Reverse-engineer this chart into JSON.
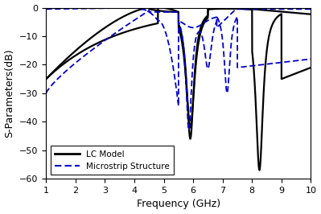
{
  "xlabel": "Frequency (GHz)",
  "ylabel": "S-Parameters(dB)",
  "xlim": [
    1,
    10
  ],
  "ylim": [
    -60,
    0
  ],
  "yticks": [
    0,
    -10,
    -20,
    -30,
    -40,
    -50,
    -60
  ],
  "xticks": [
    1,
    2,
    3,
    4,
    5,
    6,
    7,
    8,
    9,
    10
  ],
  "lc_color": "#000000",
  "ms_color": "#0000cc",
  "lc_label": "LC Model",
  "ms_label": "Microstrip Structure",
  "figsize": [
    3.99,
    2.66
  ],
  "dpi": 100
}
